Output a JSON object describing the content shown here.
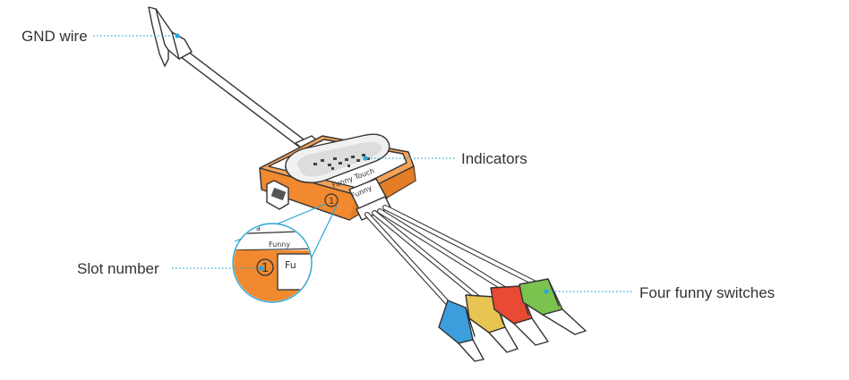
{
  "callouts": {
    "gnd_wire": "GND wire",
    "indicators": "Indicators",
    "slot_number": "Slot number",
    "four_switches": "Four funny switches"
  },
  "device": {
    "top_label": "Funny Touch",
    "plug_label": "Funny",
    "slot_digit": "1",
    "zoom_plug_label": "Fu",
    "zoom_strip_label": "Funny"
  },
  "colors": {
    "accent": "#2aa7d8",
    "body": "#f0892f",
    "clip_blue": "#3c9edc",
    "clip_yellow": "#e6c553",
    "clip_red": "#e84a33",
    "clip_green": "#7cc24f"
  }
}
